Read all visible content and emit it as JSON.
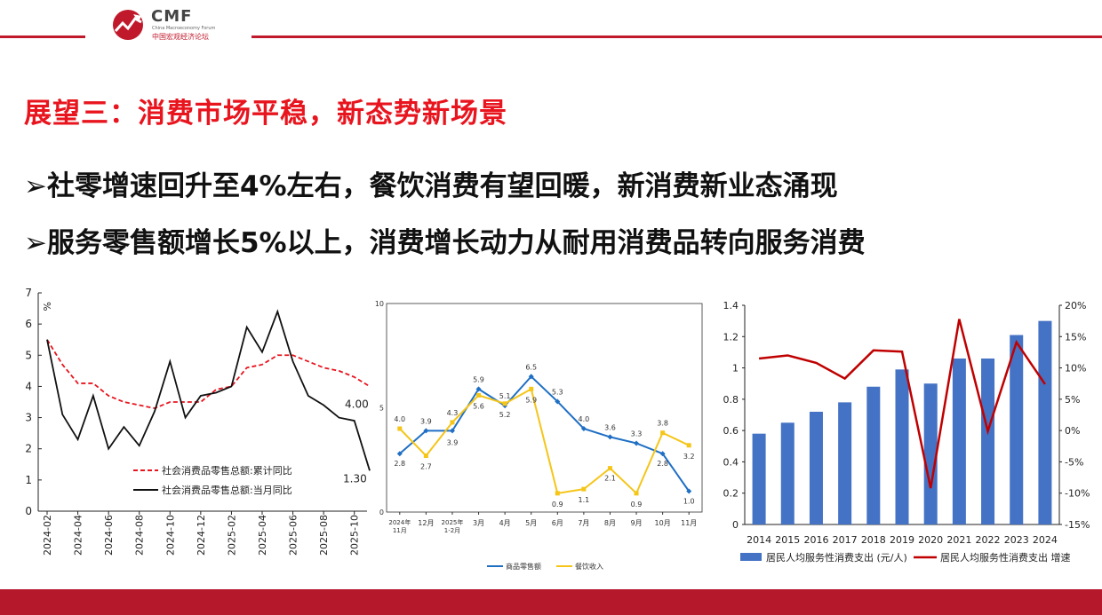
{
  "brand": {
    "logo_text": "CMF",
    "logo_sub_en": "China Macroeconomy Forum",
    "logo_sub_cn": "中国宏观经济论坛",
    "accent": "#c0192b"
  },
  "slide": {
    "title": "展望三：消费市场平稳，新态势新场景",
    "bullets": [
      "➢社零增速回升至4%左右，餐饮消费有望回暖，新消费新业态涌现",
      "➢服务零售额增长5%以上，消费增长动力从耐用消费品转向服务消费"
    ]
  },
  "chart_data": [
    {
      "type": "line",
      "x": [
        "2024-02",
        "2024-03",
        "2024-04",
        "2024-05",
        "2024-06",
        "2024-07",
        "2024-08",
        "2024-09",
        "2024-10",
        "2024-11",
        "2024-12",
        "2025-01",
        "2025-02",
        "2025-03",
        "2025-04",
        "2025-05",
        "2025-06",
        "2025-07",
        "2025-08",
        "2025-09",
        "2025-10",
        "2025-11"
      ],
      "x_tick_labels": [
        "2024-02",
        "2024-04",
        "2024-06",
        "2024-08",
        "2024-10",
        "2024-12",
        "2025-02",
        "2025-04",
        "2025-06",
        "2025-08",
        "2025-10"
      ],
      "ylabel": "%",
      "ylim": [
        0,
        7
      ],
      "yticks": [
        "0",
        "1",
        "2",
        "3",
        "4",
        "5",
        "6",
        "7"
      ],
      "series": [
        {
          "name": "社会消费品零售总额:累计同比",
          "color": "#e8141e",
          "dash": true,
          "values": [
            5.5,
            4.7,
            4.1,
            4.1,
            3.7,
            3.5,
            3.4,
            3.3,
            3.5,
            3.5,
            3.5,
            3.9,
            4.0,
            4.6,
            4.7,
            5.0,
            5.0,
            4.8,
            4.6,
            4.5,
            4.3,
            4.0
          ]
        },
        {
          "name": "社会消费品零售总额:当月同比",
          "color": "#111111",
          "dash": false,
          "values": [
            5.5,
            3.1,
            2.3,
            3.7,
            2.0,
            2.7,
            2.1,
            3.2,
            4.8,
            3.0,
            3.7,
            3.8,
            4.0,
            5.9,
            5.1,
            6.4,
            4.8,
            3.7,
            3.4,
            3.0,
            2.9,
            1.3
          ]
        }
      ],
      "annotations": [
        "4.00",
        "1.30"
      ],
      "legend_position": "bottom-left",
      "grid": false
    },
    {
      "type": "line",
      "categories": [
        "2024年11月",
        "12月",
        "2025年1-2月",
        "3月",
        "4月",
        "5月",
        "6月",
        "7月",
        "8月",
        "9月",
        "10月",
        "11月"
      ],
      "ylim": [
        0,
        10
      ],
      "yticks": [
        "0",
        "5",
        "10"
      ],
      "series": [
        {
          "name": "商品零售额",
          "color": "#1f6fc4",
          "values": [
            2.8,
            3.9,
            3.9,
            5.9,
            5.1,
            6.5,
            5.3,
            4.0,
            3.6,
            3.3,
            2.8,
            1.0
          ],
          "labels": [
            "2.8",
            "3.9",
            "3.9",
            "5.9",
            "5.1",
            "6.5",
            "5.3",
            "4.0",
            "3.6",
            "3.3",
            "2.8",
            "1.0"
          ]
        },
        {
          "name": "餐饮收入",
          "color": "#f5c518",
          "values": [
            4.0,
            2.7,
            4.3,
            5.6,
            5.2,
            5.9,
            0.9,
            1.1,
            2.1,
            0.9,
            3.8,
            3.2
          ],
          "labels": [
            "4.0",
            "2.7",
            "4.3",
            "5.6",
            "5.2",
            "5.9",
            "0.9",
            "1.1",
            "2.1",
            "0.9",
            "3.8",
            "3.2"
          ]
        }
      ],
      "legend_position": "bottom",
      "grid": false
    },
    {
      "type": "bar",
      "categories": [
        "2014",
        "2015",
        "2016",
        "2017",
        "2018",
        "2019",
        "2020",
        "2021",
        "2022",
        "2023",
        "2024"
      ],
      "ylim": [
        0,
        1.4
      ],
      "yticks": [
        "0",
        "0.2",
        "0.4",
        "0.6",
        "0.8",
        "1",
        "1.2",
        "1.4"
      ],
      "y2lim": [
        -15,
        20
      ],
      "y2ticks": [
        "-15%",
        "-10%",
        "-5%",
        "0%",
        "5%",
        "10%",
        "15%",
        "20%"
      ],
      "series": [
        {
          "name": "居民人均服务性消费支出 (元/人)",
          "type": "bar",
          "color": "#4472c4",
          "axis": "left",
          "values": [
            0.58,
            0.65,
            0.72,
            0.78,
            0.88,
            0.99,
            0.9,
            1.06,
            1.06,
            1.21,
            1.3
          ]
        },
        {
          "name": "居民人均服务性消费支出 增速",
          "type": "line",
          "color": "#c00000",
          "axis": "right",
          "values": [
            11.5,
            12.0,
            10.8,
            8.3,
            12.8,
            12.6,
            -9.2,
            17.8,
            -0.1,
            14.1,
            7.4
          ]
        }
      ],
      "legend_position": "bottom",
      "grid": false
    }
  ]
}
